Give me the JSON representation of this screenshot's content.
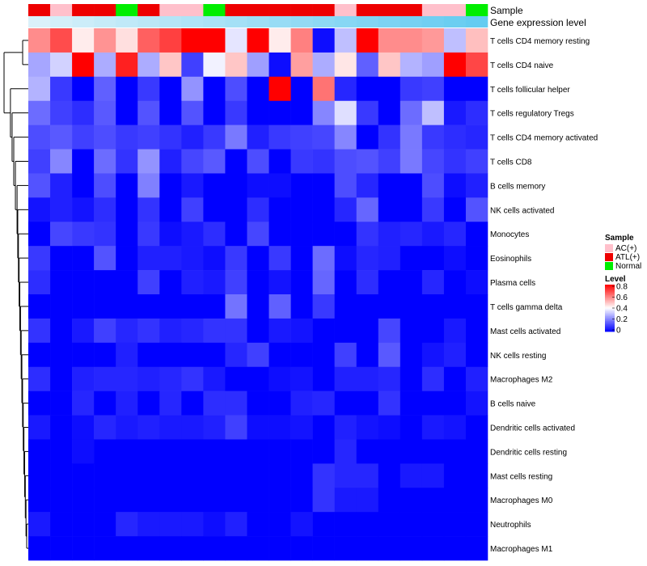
{
  "chart_data": {
    "type": "heatmap",
    "title": "",
    "annotation_labels": [
      "Sample",
      "Gene expression level"
    ],
    "samples": [
      "ATL(+)",
      "AC(+)",
      "ATL(+)",
      "ATL(+)",
      "Normal",
      "ATL(+)",
      "AC(+)",
      "AC(+)",
      "Normal",
      "ATL(+)",
      "ATL(+)",
      "ATL(+)",
      "ATL(+)",
      "ATL(+)",
      "AC(+)",
      "ATL(+)",
      "ATL(+)",
      "ATL(+)",
      "AC(+)",
      "AC(+)",
      "Normal"
    ],
    "expression_level": [
      0.9,
      0.85,
      0.8,
      0.76,
      0.72,
      0.68,
      0.64,
      0.6,
      0.56,
      0.52,
      0.48,
      0.44,
      0.4,
      0.36,
      0.32,
      0.28,
      0.24,
      0.2,
      0.16,
      0.12,
      0.08
    ],
    "rows": [
      "T cells CD4 memory resting",
      "T cells CD4 naive",
      "T cells follicular helper",
      "T cells regulatory  Tregs",
      "T cells CD4 memory activated",
      "T cells CD8",
      "B cells memory",
      "NK cells activated",
      "Monocytes",
      "Eosinophils",
      "Plasma cells",
      "T cells gamma delta",
      "Mast cells activated",
      "NK cells resting",
      "Macrophages M2",
      "B cells naive",
      "Dendritic cells activated",
      "Dendritic cells resting",
      "Mast cells resting",
      "Macrophages M0",
      "Neutrophils",
      "Macrophages M1"
    ],
    "values": [
      [
        0.58,
        0.68,
        0.43,
        0.57,
        0.45,
        0.65,
        0.7,
        0.8,
        0.8,
        0.36,
        0.8,
        0.43,
        0.6,
        0.02,
        0.3,
        0.8,
        0.58,
        0.58,
        0.56,
        0.3,
        0.5
      ],
      [
        0.26,
        0.33,
        0.8,
        0.27,
        0.75,
        0.27,
        0.49,
        0.1,
        0.38,
        0.49,
        0.25,
        0.02,
        0.55,
        0.27,
        0.44,
        0.15,
        0.49,
        0.28,
        0.25,
        0.8,
        0.69
      ],
      [
        0.28,
        0.09,
        0.0,
        0.15,
        0.0,
        0.09,
        0.0,
        0.23,
        0.0,
        0.12,
        0.0,
        0.8,
        0.0,
        0.62,
        0.06,
        0.0,
        0.0,
        0.09,
        0.1,
        0.0,
        0.0
      ],
      [
        0.17,
        0.1,
        0.07,
        0.14,
        0.0,
        0.13,
        0.0,
        0.13,
        0.0,
        0.09,
        0.0,
        0.0,
        0.0,
        0.21,
        0.35,
        0.09,
        0.0,
        0.17,
        0.3,
        0.04,
        0.07
      ],
      [
        0.12,
        0.14,
        0.1,
        0.12,
        0.09,
        0.1,
        0.08,
        0.05,
        0.09,
        0.19,
        0.05,
        0.09,
        0.1,
        0.11,
        0.21,
        0.0,
        0.08,
        0.19,
        0.09,
        0.07,
        0.06
      ],
      [
        0.1,
        0.21,
        0.0,
        0.17,
        0.08,
        0.23,
        0.05,
        0.11,
        0.14,
        0.0,
        0.12,
        0.0,
        0.09,
        0.08,
        0.12,
        0.13,
        0.1,
        0.19,
        0.11,
        0.08,
        0.1
      ],
      [
        0.13,
        0.05,
        0.0,
        0.12,
        0.0,
        0.2,
        0.0,
        0.04,
        0.0,
        0.0,
        0.02,
        0.02,
        0.0,
        0.0,
        0.12,
        0.06,
        0.0,
        0.0,
        0.12,
        0.02,
        0.05
      ],
      [
        0.03,
        0.05,
        0.03,
        0.07,
        0.0,
        0.08,
        0.0,
        0.1,
        0.0,
        0.0,
        0.07,
        0.0,
        0.0,
        0.0,
        0.06,
        0.16,
        0.0,
        0.0,
        0.09,
        0.0,
        0.13
      ],
      [
        0.0,
        0.11,
        0.09,
        0.08,
        0.0,
        0.09,
        0.02,
        0.04,
        0.07,
        0.0,
        0.11,
        0.0,
        0.0,
        0.0,
        0.0,
        0.08,
        0.05,
        0.06,
        0.04,
        0.06,
        0.0
      ],
      [
        0.09,
        0.0,
        0.0,
        0.13,
        0.0,
        0.05,
        0.05,
        0.04,
        0.02,
        0.09,
        0.0,
        0.09,
        0.0,
        0.17,
        0.02,
        0.06,
        0.05,
        0.0,
        0.0,
        0.02,
        0.0
      ],
      [
        0.07,
        0.0,
        0.0,
        0.0,
        0.0,
        0.1,
        0.0,
        0.05,
        0.04,
        0.1,
        0.0,
        0.03,
        0.0,
        0.16,
        0.0,
        0.07,
        0.0,
        0.0,
        0.06,
        0.0,
        0.02
      ],
      [
        0.0,
        0.0,
        0.0,
        0.0,
        0.0,
        0.0,
        0.0,
        0.0,
        0.0,
        0.18,
        0.0,
        0.15,
        0.0,
        0.09,
        0.0,
        0.0,
        0.0,
        0.0,
        0.0,
        0.0,
        0.0
      ],
      [
        0.08,
        0.0,
        0.04,
        0.1,
        0.06,
        0.08,
        0.05,
        0.06,
        0.08,
        0.08,
        0.0,
        0.04,
        0.03,
        0.0,
        0.0,
        0.0,
        0.11,
        0.0,
        0.0,
        0.04,
        0.0
      ],
      [
        0.0,
        0.0,
        0.0,
        0.0,
        0.05,
        0.0,
        0.0,
        0.0,
        0.0,
        0.06,
        0.1,
        0.0,
        0.0,
        0.0,
        0.1,
        0.0,
        0.14,
        0.0,
        0.03,
        0.05,
        0.0
      ],
      [
        0.07,
        0.0,
        0.05,
        0.06,
        0.06,
        0.05,
        0.06,
        0.08,
        0.04,
        0.0,
        0.0,
        0.02,
        0.03,
        0.0,
        0.05,
        0.05,
        0.06,
        0.0,
        0.07,
        0.0,
        0.05
      ],
      [
        0.0,
        0.0,
        0.06,
        0.0,
        0.05,
        0.0,
        0.06,
        0.0,
        0.07,
        0.07,
        0.0,
        0.0,
        0.05,
        0.06,
        0.0,
        0.0,
        0.08,
        0.0,
        0.0,
        0.0,
        0.03
      ],
      [
        0.04,
        0.0,
        0.02,
        0.06,
        0.04,
        0.05,
        0.04,
        0.04,
        0.05,
        0.1,
        0.02,
        0.02,
        0.03,
        0.0,
        0.05,
        0.03,
        0.02,
        0.0,
        0.04,
        0.03,
        0.0
      ],
      [
        0.0,
        0.0,
        0.02,
        0.0,
        0.0,
        0.0,
        0.0,
        0.0,
        0.0,
        0.0,
        0.0,
        0.0,
        0.0,
        0.0,
        0.06,
        0.0,
        0.0,
        0.0,
        0.0,
        0.0,
        0.0
      ],
      [
        0.0,
        0.0,
        0.0,
        0.0,
        0.0,
        0.0,
        0.0,
        0.0,
        0.0,
        0.0,
        0.0,
        0.0,
        0.0,
        0.08,
        0.06,
        0.06,
        0.0,
        0.04,
        0.04,
        0.0,
        0.0
      ],
      [
        0.0,
        0.0,
        0.0,
        0.0,
        0.0,
        0.0,
        0.0,
        0.0,
        0.0,
        0.0,
        0.0,
        0.0,
        0.0,
        0.08,
        0.04,
        0.04,
        0.0,
        0.0,
        0.0,
        0.0,
        0.0
      ],
      [
        0.04,
        0.0,
        0.0,
        0.0,
        0.06,
        0.04,
        0.04,
        0.04,
        0.02,
        0.05,
        0.0,
        0.0,
        0.03,
        0.0,
        0.0,
        0.0,
        0.0,
        0.0,
        0.0,
        0.0,
        0.0
      ],
      [
        0.0,
        0.0,
        0.0,
        0.0,
        0.0,
        0.0,
        0.0,
        0.0,
        0.0,
        0.0,
        0.0,
        0.0,
        0.0,
        0.0,
        0.0,
        0.0,
        0.0,
        0.0,
        0.0,
        0.0,
        0.0
      ]
    ],
    "sample_legend": {
      "title": "Sample",
      "entries": [
        {
          "label": "AC(+)",
          "color": "#ffc0cb"
        },
        {
          "label": "ATL(+)",
          "color": "#ee0000"
        },
        {
          "label": "Normal",
          "color": "#00ee00"
        }
      ]
    },
    "level_legend": {
      "title": "Level",
      "ticks": [
        "0.8",
        "0.6",
        "0.4",
        "0.2",
        "0"
      ],
      "range": [
        0,
        0.8
      ]
    },
    "color_scale": {
      "low": "#0000ff",
      "mid": "#ffffff",
      "high": "#ff0000",
      "mid_value": 0.4
    },
    "expression_colors": {
      "low": "#5ac8f0",
      "high": "#e8f6fb"
    },
    "legend_placement": "right",
    "dendrogram": "rows-left"
  }
}
